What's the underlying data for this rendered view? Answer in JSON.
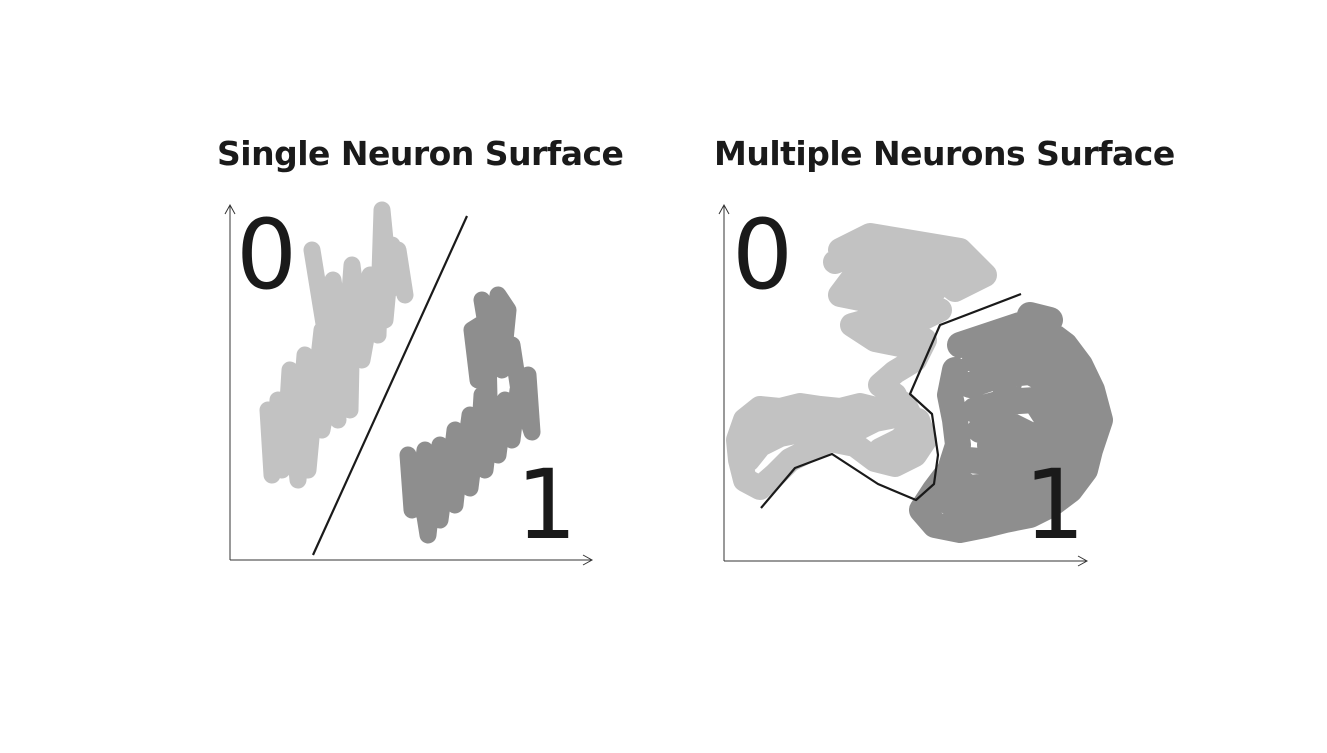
{
  "panels": [
    {
      "title": "Single Neuron Surface",
      "label_class_0": "0",
      "label_class_1": "1",
      "boundary": "straight line"
    },
    {
      "title": "Multiple Neurons Surface",
      "label_class_0": "0",
      "label_class_1": "1",
      "boundary": "piecewise curve"
    }
  ],
  "colors": {
    "class_0_scribble": "#c2c2c2",
    "class_1_scribble": "#8e8e8e",
    "boundary_line": "#1a1a1a",
    "axis": "#333333",
    "text": "#1a1a1a"
  }
}
